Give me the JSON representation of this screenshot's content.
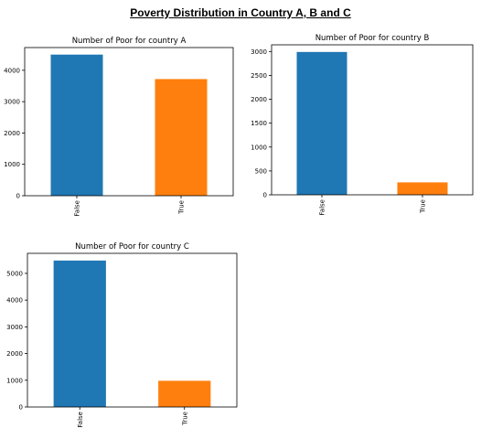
{
  "title": "Poverty Distribution in Country A, B and C",
  "colors": {
    "false_bar": "#1f77b4",
    "true_bar": "#ff7f0e"
  },
  "chart_data": [
    {
      "type": "bar",
      "title": "Number of Poor for country A",
      "categories": [
        "False",
        "True"
      ],
      "values": [
        4500,
        3720
      ],
      "ylim": [
        0,
        4725
      ],
      "yticks": [
        0,
        1000,
        2000,
        3000,
        4000
      ],
      "ytick_labels": [
        "0",
        "1000",
        "2000",
        "3000",
        "4000"
      ],
      "xlabel": "",
      "ylabel": "",
      "grid": false
    },
    {
      "type": "bar",
      "title": "Number of Poor for country B",
      "categories": [
        "False",
        "True"
      ],
      "values": [
        2990,
        260
      ],
      "ylim": [
        0,
        3140
      ],
      "yticks": [
        0,
        500,
        1000,
        1500,
        2000,
        2500,
        3000
      ],
      "ytick_labels": [
        "0",
        "500",
        "1000",
        "1500",
        "2000",
        "2500",
        "3000"
      ],
      "xlabel": "",
      "ylabel": "",
      "grid": false
    },
    {
      "type": "bar",
      "title": "Number of Poor for country C",
      "categories": [
        "False",
        "True"
      ],
      "values": [
        5480,
        980
      ],
      "ylim": [
        0,
        5750
      ],
      "yticks": [
        0,
        1000,
        2000,
        3000,
        4000,
        5000
      ],
      "ytick_labels": [
        "0",
        "1000",
        "2000",
        "3000",
        "4000",
        "5000"
      ],
      "xlabel": "",
      "ylabel": "",
      "grid": false
    }
  ]
}
